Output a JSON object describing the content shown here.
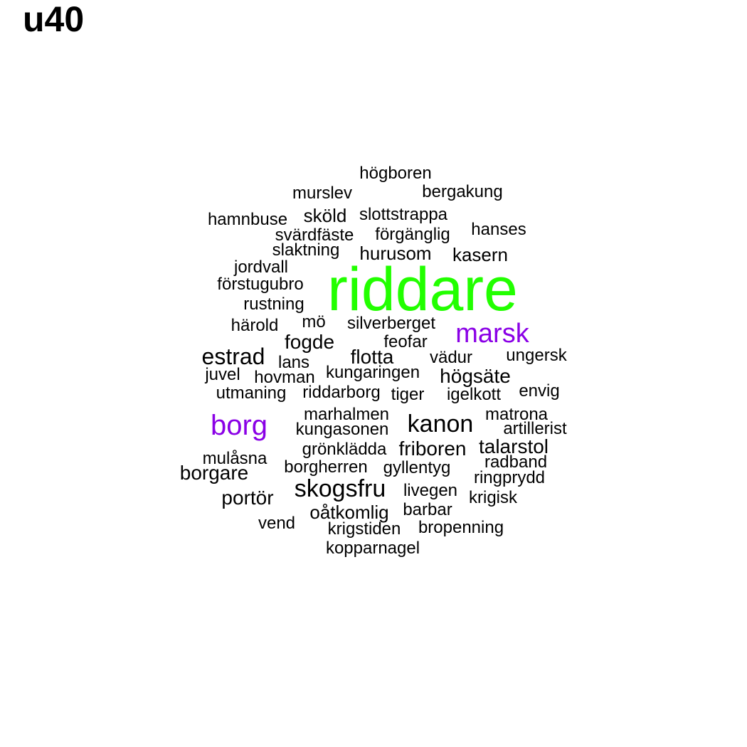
{
  "title": "u40",
  "colors": {
    "top": "#22ff00",
    "second": "#8a00e6",
    "default": "#000000"
  },
  "words": [
    {
      "text": "riddare",
      "group": "top"
    },
    {
      "text": "marsk",
      "group": "second"
    },
    {
      "text": "borg",
      "group": "second"
    },
    {
      "text": "högboren",
      "group": "default"
    },
    {
      "text": "murslev",
      "group": "default"
    },
    {
      "text": "bergakung",
      "group": "default"
    },
    {
      "text": "hamnbuse",
      "group": "default"
    },
    {
      "text": "sköld",
      "group": "default"
    },
    {
      "text": "slottstrappa",
      "group": "default"
    },
    {
      "text": "svärdfäste",
      "group": "default"
    },
    {
      "text": "förgänglig",
      "group": "default"
    },
    {
      "text": "hanses",
      "group": "default"
    },
    {
      "text": "slaktning",
      "group": "default"
    },
    {
      "text": "hurusom",
      "group": "default"
    },
    {
      "text": "kasern",
      "group": "default"
    },
    {
      "text": "jordvall",
      "group": "default"
    },
    {
      "text": "förstugubro",
      "group": "default"
    },
    {
      "text": "rustning",
      "group": "default"
    },
    {
      "text": "härold",
      "group": "default"
    },
    {
      "text": "mö",
      "group": "default"
    },
    {
      "text": "silverberget",
      "group": "default"
    },
    {
      "text": "fogde",
      "group": "default"
    },
    {
      "text": "feofar",
      "group": "default"
    },
    {
      "text": "estrad",
      "group": "default"
    },
    {
      "text": "lans",
      "group": "default"
    },
    {
      "text": "flotta",
      "group": "default"
    },
    {
      "text": "vädur",
      "group": "default"
    },
    {
      "text": "ungersk",
      "group": "default"
    },
    {
      "text": "juvel",
      "group": "default"
    },
    {
      "text": "hovman",
      "group": "default"
    },
    {
      "text": "kungaringen",
      "group": "default"
    },
    {
      "text": "högsäte",
      "group": "default"
    },
    {
      "text": "utmaning",
      "group": "default"
    },
    {
      "text": "riddarborg",
      "group": "default"
    },
    {
      "text": "tiger",
      "group": "default"
    },
    {
      "text": "igelkott",
      "group": "default"
    },
    {
      "text": "envig",
      "group": "default"
    },
    {
      "text": "marhalmen",
      "group": "default"
    },
    {
      "text": "kanon",
      "group": "default"
    },
    {
      "text": "matrona",
      "group": "default"
    },
    {
      "text": "kungasonen",
      "group": "default"
    },
    {
      "text": "artillerist",
      "group": "default"
    },
    {
      "text": "grönklädda",
      "group": "default"
    },
    {
      "text": "friboren",
      "group": "default"
    },
    {
      "text": "talarstol",
      "group": "default"
    },
    {
      "text": "mulåsna",
      "group": "default"
    },
    {
      "text": "borgherren",
      "group": "default"
    },
    {
      "text": "gyllentyg",
      "group": "default"
    },
    {
      "text": "radband",
      "group": "default"
    },
    {
      "text": "borgare",
      "group": "default"
    },
    {
      "text": "ringprydd",
      "group": "default"
    },
    {
      "text": "skogsfru",
      "group": "default"
    },
    {
      "text": "livegen",
      "group": "default"
    },
    {
      "text": "krigisk",
      "group": "default"
    },
    {
      "text": "portör",
      "group": "default"
    },
    {
      "text": "oåtkomlig",
      "group": "default"
    },
    {
      "text": "barbar",
      "group": "default"
    },
    {
      "text": "vend",
      "group": "default"
    },
    {
      "text": "krigstiden",
      "group": "default"
    },
    {
      "text": "bropenning",
      "group": "default"
    },
    {
      "text": "kopparnagel",
      "group": "default"
    }
  ]
}
